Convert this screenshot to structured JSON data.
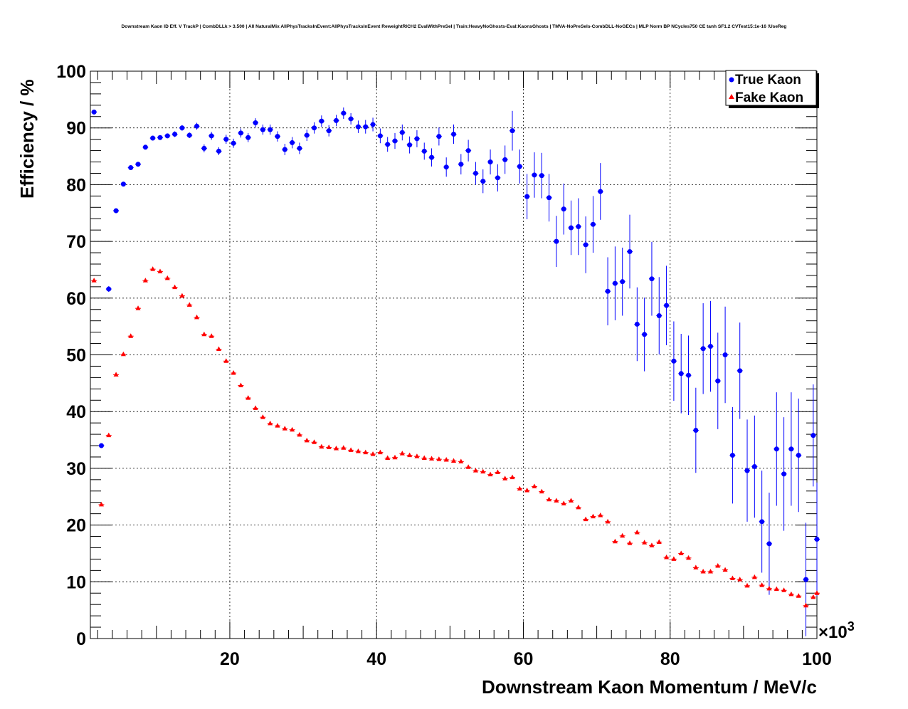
{
  "chart_data": {
    "type": "scatter",
    "title": "Downstream Kaon ID Eff. V TrackP | CombDLLk > 3.500 | All NaturalMix AllPhysTracksInEvent:AllPhysTracksInEvent ReweightRICH2 EvalWithPreSel | Train:HeavyNoGhosts-Eval:KaonsGhosts | TMVA-NoPreSels-CombDLL-NoGECs | MLP Norm BP NCycles750 CE tanh SF1.2 CVTest15:1e-16 !UseReg",
    "xlabel": "Downstream Kaon Momentum / MeV/c",
    "ylabel": "Efficiency / %",
    "x_multiplier_label": "×10",
    "x_multiplier_exp": "3",
    "xlim": [
      1,
      100
    ],
    "ylim": [
      0,
      100
    ],
    "xticks": [
      20,
      40,
      60,
      80,
      100
    ],
    "yticks": [
      0,
      10,
      20,
      30,
      40,
      50,
      60,
      70,
      80,
      90,
      100
    ],
    "grid": true,
    "legend_position": "top-right",
    "series": [
      {
        "name": "True Kaon",
        "color": "#0000ff",
        "marker": "circle",
        "x": [
          1.5,
          2.5,
          3.5,
          4.5,
          5.5,
          6.5,
          7.5,
          8.5,
          9.5,
          10.5,
          11.5,
          12.5,
          13.5,
          14.5,
          15.5,
          16.5,
          17.5,
          18.5,
          19.5,
          20.5,
          21.5,
          22.5,
          23.5,
          24.5,
          25.5,
          26.5,
          27.5,
          28.5,
          29.5,
          30.5,
          31.5,
          32.5,
          33.5,
          34.5,
          35.5,
          36.5,
          37.5,
          38.5,
          39.5,
          40.5,
          41.5,
          42.5,
          43.5,
          44.5,
          45.5,
          46.5,
          47.5,
          48.5,
          49.5,
          50.5,
          51.5,
          52.5,
          53.5,
          54.5,
          55.5,
          56.5,
          57.5,
          58.5,
          59.5,
          60.5,
          61.5,
          62.5,
          63.5,
          64.5,
          65.5,
          66.5,
          67.5,
          68.5,
          69.5,
          70.5,
          71.5,
          72.5,
          73.5,
          74.5,
          75.5,
          76.5,
          77.5,
          78.5,
          79.5,
          80.5,
          81.5,
          82.5,
          83.5,
          84.5,
          85.5,
          86.5,
          87.5,
          88.5,
          89.5,
          90.5,
          91.5,
          92.5,
          93.5,
          94.5,
          95.5,
          96.5,
          97.5,
          98.5,
          99.5,
          100.0
        ],
        "y": [
          92.8,
          34.0,
          61.6,
          75.4,
          80.1,
          83.0,
          83.6,
          86.6,
          88.2,
          88.3,
          88.6,
          88.9,
          90.0,
          88.7,
          90.3,
          86.4,
          88.6,
          85.9,
          88.0,
          87.3,
          89.1,
          88.3,
          90.9,
          89.7,
          89.7,
          88.5,
          86.2,
          87.4,
          86.4,
          88.7,
          90.0,
          91.2,
          89.5,
          91.3,
          92.6,
          91.6,
          90.2,
          90.2,
          90.6,
          88.6,
          87.1,
          87.7,
          89.2,
          87.0,
          88.1,
          85.9,
          84.8,
          88.5,
          83.1,
          88.9,
          83.6,
          86.0,
          82.0,
          80.6,
          84.0,
          81.2,
          84.4,
          89.5,
          83.2,
          77.9,
          81.7,
          81.6,
          77.7,
          70.0,
          75.7,
          72.4,
          72.6,
          69.4,
          73.0,
          78.8,
          61.2,
          62.6,
          62.9,
          68.2,
          55.4,
          53.6,
          63.4,
          56.9,
          58.7,
          48.9,
          46.7,
          46.4,
          36.7,
          51.1,
          51.5,
          45.4,
          50.0,
          32.3,
          47.2,
          29.6,
          30.3,
          20.6,
          16.7,
          33.4,
          29.0,
          33.4,
          32.3,
          10.4,
          35.8,
          17.5
        ],
        "yerr": [
          0.3,
          0.4,
          0.5,
          0.4,
          0.4,
          0.4,
          0.4,
          0.4,
          0.4,
          0.4,
          0.4,
          0.5,
          0.5,
          0.5,
          0.6,
          0.7,
          0.7,
          0.7,
          0.8,
          0.8,
          0.8,
          0.8,
          0.8,
          0.9,
          0.9,
          0.9,
          1.0,
          1.0,
          1.0,
          1.0,
          1.0,
          1.0,
          1.0,
          1.0,
          1.0,
          1.0,
          1.1,
          1.2,
          1.2,
          1.3,
          1.3,
          1.4,
          1.4,
          1.5,
          1.5,
          1.5,
          1.6,
          1.6,
          1.7,
          1.7,
          1.8,
          1.9,
          2.0,
          2.1,
          2.2,
          2.4,
          2.5,
          3.5,
          3.0,
          4.0,
          4.0,
          4.0,
          4.2,
          4.5,
          4.5,
          4.8,
          5.0,
          5.0,
          5.0,
          5.0,
          6.0,
          6.5,
          6.0,
          6.5,
          6.5,
          6.5,
          6.5,
          6.8,
          7.0,
          7.0,
          7.0,
          7.0,
          7.5,
          8.0,
          8.0,
          8.5,
          8.5,
          8.5,
          8.5,
          9.0,
          9.0,
          9.0,
          9.0,
          10.0,
          10.0,
          10.0,
          10.0,
          10.0,
          9.0,
          10.0
        ]
      },
      {
        "name": "Fake Kaon",
        "color": "#ff0000",
        "marker": "triangle",
        "x": [
          1.5,
          2.5,
          3.5,
          4.5,
          5.5,
          6.5,
          7.5,
          8.5,
          9.5,
          10.5,
          11.5,
          12.5,
          13.5,
          14.5,
          15.5,
          16.5,
          17.5,
          18.5,
          19.5,
          20.5,
          21.5,
          22.5,
          23.5,
          24.5,
          25.5,
          26.5,
          27.5,
          28.5,
          29.5,
          30.5,
          31.5,
          32.5,
          33.5,
          34.5,
          35.5,
          36.5,
          37.5,
          38.5,
          39.5,
          40.5,
          41.5,
          42.5,
          43.5,
          44.5,
          45.5,
          46.5,
          47.5,
          48.5,
          49.5,
          50.5,
          51.5,
          52.5,
          53.5,
          54.5,
          55.5,
          56.5,
          57.5,
          58.5,
          59.5,
          60.5,
          61.5,
          62.5,
          63.5,
          64.5,
          65.5,
          66.5,
          67.5,
          68.5,
          69.5,
          70.5,
          71.5,
          72.5,
          73.5,
          74.5,
          75.5,
          76.5,
          77.5,
          78.5,
          79.5,
          80.5,
          81.5,
          82.5,
          83.5,
          84.5,
          85.5,
          86.5,
          87.5,
          88.5,
          89.5,
          90.5,
          91.5,
          92.5,
          93.5,
          94.5,
          95.5,
          96.5,
          97.5,
          98.5,
          99.5,
          100.0
        ],
        "y": [
          63.1,
          23.6,
          35.8,
          46.5,
          50.1,
          53.3,
          58.2,
          63.1,
          65.1,
          64.7,
          63.5,
          61.9,
          60.4,
          58.8,
          56.6,
          53.6,
          53.3,
          51.0,
          48.9,
          46.8,
          44.6,
          42.4,
          40.6,
          39.0,
          37.9,
          37.5,
          37.0,
          36.8,
          35.9,
          34.9,
          34.6,
          33.8,
          33.7,
          33.5,
          33.6,
          33.2,
          33.0,
          32.8,
          32.5,
          32.8,
          31.8,
          31.9,
          32.6,
          32.3,
          32.1,
          31.8,
          31.7,
          31.6,
          31.5,
          31.3,
          31.2,
          30.2,
          29.6,
          29.4,
          28.9,
          29.3,
          28.2,
          28.4,
          26.4,
          26.1,
          26.8,
          25.9,
          24.5,
          24.3,
          23.8,
          24.3,
          23.1,
          21.0,
          21.5,
          21.7,
          20.6,
          17.1,
          18.1,
          16.8,
          18.7,
          16.9,
          16.4,
          17.0,
          14.3,
          14.0,
          15.0,
          14.2,
          12.5,
          11.8,
          11.8,
          12.8,
          12.1,
          10.6,
          10.4,
          9.3,
          10.8,
          9.4,
          8.8,
          8.7,
          8.5,
          7.8,
          7.5,
          5.8,
          7.3,
          8.0
        ]
      }
    ]
  }
}
